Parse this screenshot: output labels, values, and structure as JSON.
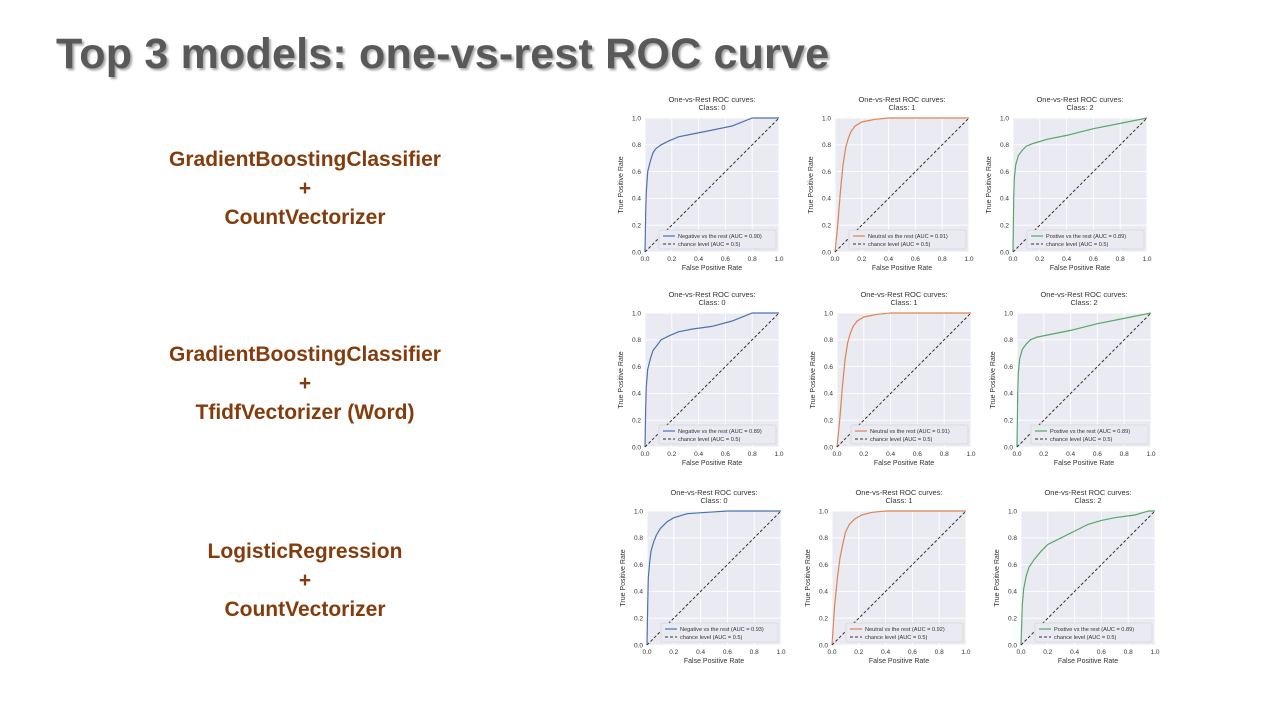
{
  "slide": {
    "title": "Top 3 models: one-vs-rest ROC curve"
  },
  "colors": {
    "class_0": "#4c72b0",
    "class_1": "#dd8452",
    "class_2": "#55a868",
    "chance": "#333333",
    "plot_bg": "#eaeaf2",
    "model_text": "#843c0c"
  },
  "models": [
    {
      "classifier": "GradientBoostingClassifier",
      "plus": "+",
      "vectorizer": "CountVectorizer"
    },
    {
      "classifier": "GradientBoostingClassifier",
      "plus": "+",
      "vectorizer": "TfidfVectorizer (Word)"
    },
    {
      "classifier": "LogisticRegression",
      "plus": "+",
      "vectorizer": "CountVectorizer"
    }
  ],
  "chart_data": [
    {
      "type": "line",
      "title": "One-vs-Rest ROC curves:",
      "subtitle": "Class: 0",
      "xlabel": "False Positive Rate",
      "ylabel": "True Positive Rate",
      "xlim": [
        0,
        1
      ],
      "ylim": [
        0,
        1
      ],
      "ticks": [
        "0.0",
        "0.2",
        "0.4",
        "0.6",
        "0.8",
        "1.0"
      ],
      "grid": true,
      "legend": "lower-right",
      "series": [
        {
          "name": "Negative vs the rest (AUC = 0.90)",
          "color": "#4c72b0",
          "style": "solid",
          "x": [
            0,
            0.005,
            0.01,
            0.02,
            0.04,
            0.06,
            0.08,
            0.12,
            0.18,
            0.25,
            0.35,
            0.5,
            0.65,
            0.8,
            1.0
          ],
          "y": [
            0,
            0.3,
            0.45,
            0.6,
            0.68,
            0.74,
            0.77,
            0.8,
            0.83,
            0.86,
            0.88,
            0.91,
            0.94,
            1.0,
            1.0
          ]
        },
        {
          "name": "chance level (AUC = 0.5)",
          "color": "#333333",
          "style": "dashed",
          "x": [
            0,
            1
          ],
          "y": [
            0,
            1
          ]
        }
      ]
    },
    {
      "type": "line",
      "title": "One-vs-Rest ROC curves:",
      "subtitle": "Class: 1",
      "xlabel": "False Positive Rate",
      "ylabel": "True Positive Rate",
      "xlim": [
        0,
        1
      ],
      "ylim": [
        0,
        1
      ],
      "ticks": [
        "0.0",
        "0.2",
        "0.4",
        "0.6",
        "0.8",
        "1.0"
      ],
      "grid": true,
      "legend": "lower-right",
      "series": [
        {
          "name": "Neutral vs the rest (AUC = 0.91)",
          "color": "#dd8452",
          "style": "solid",
          "x": [
            0,
            0.02,
            0.04,
            0.06,
            0.08,
            0.1,
            0.12,
            0.15,
            0.2,
            0.3,
            0.4,
            0.6,
            1.0
          ],
          "y": [
            0,
            0.2,
            0.45,
            0.65,
            0.78,
            0.85,
            0.9,
            0.94,
            0.97,
            0.99,
            1.0,
            1.0,
            1.0
          ]
        },
        {
          "name": "chance level (AUC = 0.5)",
          "color": "#333333",
          "style": "dashed",
          "x": [
            0,
            1
          ],
          "y": [
            0,
            1
          ]
        }
      ]
    },
    {
      "type": "line",
      "title": "One-vs-Rest ROC curves:",
      "subtitle": "Class: 2",
      "xlabel": "False Positive Rate",
      "ylabel": "True Positive Rate",
      "xlim": [
        0,
        1
      ],
      "ylim": [
        0,
        1
      ],
      "ticks": [
        "0.0",
        "0.2",
        "0.4",
        "0.6",
        "0.8",
        "1.0"
      ],
      "grid": true,
      "legend": "lower-right",
      "series": [
        {
          "name": "Postive vs the rest (AUC = 0.89)",
          "color": "#55a868",
          "style": "solid",
          "x": [
            0,
            0.005,
            0.01,
            0.02,
            0.04,
            0.07,
            0.1,
            0.15,
            0.25,
            0.4,
            0.6,
            0.8,
            1.0
          ],
          "y": [
            0,
            0.4,
            0.55,
            0.65,
            0.72,
            0.76,
            0.79,
            0.81,
            0.84,
            0.87,
            0.92,
            0.96,
            1.0
          ]
        },
        {
          "name": "chance level (AUC = 0.5)",
          "color": "#333333",
          "style": "dashed",
          "x": [
            0,
            1
          ],
          "y": [
            0,
            1
          ]
        }
      ]
    },
    {
      "type": "line",
      "title": "One-vs-Rest ROC curves:",
      "subtitle": "Class: 0",
      "xlabel": "False Positive Rate",
      "ylabel": "True Positive Rate",
      "xlim": [
        0,
        1
      ],
      "ylim": [
        0,
        1
      ],
      "ticks": [
        "0.0",
        "0.2",
        "0.4",
        "0.6",
        "0.8",
        "1.0"
      ],
      "grid": true,
      "legend": "lower-right",
      "series": [
        {
          "name": "Negative vs the rest (AUC = 0.89)",
          "color": "#4c72b0",
          "style": "solid",
          "x": [
            0,
            0.005,
            0.01,
            0.02,
            0.04,
            0.06,
            0.09,
            0.12,
            0.18,
            0.25,
            0.35,
            0.5,
            0.65,
            0.8,
            1.0
          ],
          "y": [
            0,
            0.3,
            0.45,
            0.58,
            0.66,
            0.72,
            0.76,
            0.8,
            0.83,
            0.86,
            0.88,
            0.9,
            0.94,
            1.0,
            1.0
          ]
        },
        {
          "name": "chance level (AUC = 0.5)",
          "color": "#333333",
          "style": "dashed",
          "x": [
            0,
            1
          ],
          "y": [
            0,
            1
          ]
        }
      ]
    },
    {
      "type": "line",
      "title": "One-vs-Rest ROC curves:",
      "subtitle": "Class: 1",
      "xlabel": "False Positive Rate",
      "ylabel": "True Positive Rate",
      "xlim": [
        0,
        1
      ],
      "ylim": [
        0,
        1
      ],
      "ticks": [
        "0.0",
        "0.2",
        "0.4",
        "0.6",
        "0.8",
        "1.0"
      ],
      "grid": true,
      "legend": "lower-right",
      "series": [
        {
          "name": "Neutral vs the rest (AUC = 0.91)",
          "color": "#dd8452",
          "style": "solid",
          "x": [
            0,
            0.02,
            0.04,
            0.06,
            0.08,
            0.1,
            0.12,
            0.15,
            0.2,
            0.3,
            0.4,
            0.6,
            1.0
          ],
          "y": [
            0,
            0.2,
            0.45,
            0.65,
            0.78,
            0.85,
            0.9,
            0.94,
            0.97,
            0.99,
            1.0,
            1.0,
            1.0
          ]
        },
        {
          "name": "chance level (AUC = 0.5)",
          "color": "#333333",
          "style": "dashed",
          "x": [
            0,
            1
          ],
          "y": [
            0,
            1
          ]
        }
      ]
    },
    {
      "type": "line",
      "title": "One-vs-Rest ROC curves:",
      "subtitle": "Class: 2",
      "xlabel": "False Positive Rate",
      "ylabel": "True Positive Rate",
      "xlim": [
        0,
        1
      ],
      "ylim": [
        0,
        1
      ],
      "ticks": [
        "0.0",
        "0.2",
        "0.4",
        "0.6",
        "0.8",
        "1.0"
      ],
      "grid": true,
      "legend": "lower-right",
      "series": [
        {
          "name": "Postive vs the rest (AUC = 0.89)",
          "color": "#55a868",
          "style": "solid",
          "x": [
            0,
            0.005,
            0.01,
            0.02,
            0.04,
            0.07,
            0.1,
            0.15,
            0.25,
            0.4,
            0.6,
            0.8,
            1.0
          ],
          "y": [
            0,
            0.4,
            0.55,
            0.66,
            0.73,
            0.77,
            0.8,
            0.82,
            0.84,
            0.87,
            0.92,
            0.96,
            1.0
          ]
        },
        {
          "name": "chance level (AUC = 0.5)",
          "color": "#333333",
          "style": "dashed",
          "x": [
            0,
            1
          ],
          "y": [
            0,
            1
          ]
        }
      ]
    },
    {
      "type": "line",
      "title": "One-vs-Rest ROC curves:",
      "subtitle": "Class: 0",
      "xlabel": "False Positive Rate",
      "ylabel": "True Positive Rate",
      "xlim": [
        0,
        1
      ],
      "ylim": [
        0,
        1
      ],
      "ticks": [
        "0.0",
        "0.2",
        "0.4",
        "0.6",
        "0.8",
        "1.0"
      ],
      "grid": true,
      "legend": "lower-right",
      "series": [
        {
          "name": "Negative vs the rest (AUC = 0.93)",
          "color": "#4c72b0",
          "style": "solid",
          "x": [
            0,
            0.005,
            0.01,
            0.02,
            0.03,
            0.05,
            0.07,
            0.1,
            0.15,
            0.2,
            0.3,
            0.45,
            0.6,
            1.0
          ],
          "y": [
            0,
            0.3,
            0.5,
            0.62,
            0.7,
            0.77,
            0.82,
            0.87,
            0.92,
            0.95,
            0.98,
            0.99,
            1.0,
            1.0
          ]
        },
        {
          "name": "chance level (AUC = 0.5)",
          "color": "#333333",
          "style": "dashed",
          "x": [
            0,
            1
          ],
          "y": [
            0,
            1
          ]
        }
      ]
    },
    {
      "type": "line",
      "title": "One-vs-Rest ROC curves:",
      "subtitle": "Class: 1",
      "xlabel": "False Positive Rate",
      "ylabel": "True Positive Rate",
      "xlim": [
        0,
        1
      ],
      "ylim": [
        0,
        1
      ],
      "ticks": [
        "0.0",
        "0.2",
        "0.4",
        "0.6",
        "0.8",
        "1.0"
      ],
      "grid": true,
      "legend": "lower-right",
      "series": [
        {
          "name": "Neutral vs the rest (AUC = 0.92)",
          "color": "#dd8452",
          "style": "solid",
          "x": [
            0,
            0.01,
            0.02,
            0.04,
            0.06,
            0.08,
            0.1,
            0.13,
            0.17,
            0.22,
            0.3,
            0.4,
            0.6,
            1.0
          ],
          "y": [
            0,
            0.15,
            0.3,
            0.5,
            0.65,
            0.75,
            0.84,
            0.9,
            0.94,
            0.97,
            0.99,
            1.0,
            1.0,
            1.0
          ]
        },
        {
          "name": "chance level (AUC = 0.5)",
          "color": "#333333",
          "style": "dashed",
          "x": [
            0,
            1
          ],
          "y": [
            0,
            1
          ]
        }
      ]
    },
    {
      "type": "line",
      "title": "One-vs-Rest ROC curves:",
      "subtitle": "Class: 2",
      "xlabel": "False Positive Rate",
      "ylabel": "True Positive Rate",
      "xlim": [
        0,
        1
      ],
      "ylim": [
        0,
        1
      ],
      "ticks": [
        "0.0",
        "0.2",
        "0.4",
        "0.6",
        "0.8",
        "1.0"
      ],
      "grid": true,
      "legend": "lower-right",
      "series": [
        {
          "name": "Postive vs the rest (AUC = 0.89)",
          "color": "#55a868",
          "style": "solid",
          "x": [
            0,
            0.01,
            0.02,
            0.04,
            0.06,
            0.1,
            0.15,
            0.2,
            0.3,
            0.4,
            0.5,
            0.6,
            0.7,
            0.85,
            0.95,
            1.0
          ],
          "y": [
            0,
            0.3,
            0.42,
            0.52,
            0.58,
            0.64,
            0.7,
            0.75,
            0.8,
            0.85,
            0.9,
            0.93,
            0.95,
            0.97,
            1.0,
            1.0
          ]
        },
        {
          "name": "chance level (AUC = 0.5)",
          "color": "#333333",
          "style": "dashed",
          "x": [
            0,
            1
          ],
          "y": [
            0,
            1
          ]
        }
      ]
    }
  ]
}
